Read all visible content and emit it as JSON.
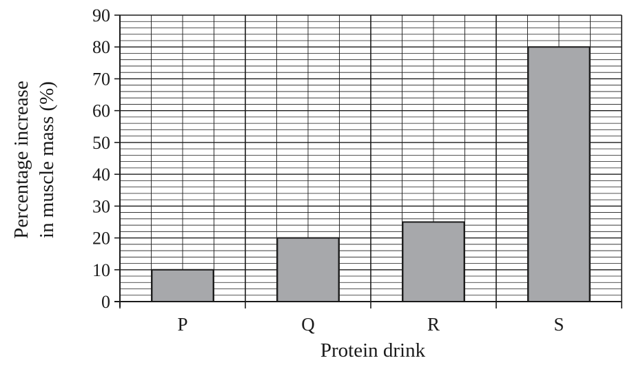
{
  "chart_data": {
    "type": "bar",
    "categories": [
      "P",
      "Q",
      "R",
      "S"
    ],
    "values": [
      10,
      20,
      25,
      80
    ],
    "title": "",
    "xlabel": "Protein drink",
    "ylabel_lines": [
      "Percentage increase",
      "in muscle mass (%)"
    ],
    "ylim": [
      0,
      90
    ],
    "yticks": [
      0,
      10,
      20,
      30,
      40,
      50,
      60,
      70,
      80,
      90
    ],
    "grid": true,
    "legend": "none",
    "colors": {
      "bar_fill": "#a7a8ab",
      "bar_stroke": "#1a1a1a",
      "grid_line": "#1a1a1a",
      "axis": "#1a1a1a"
    }
  }
}
